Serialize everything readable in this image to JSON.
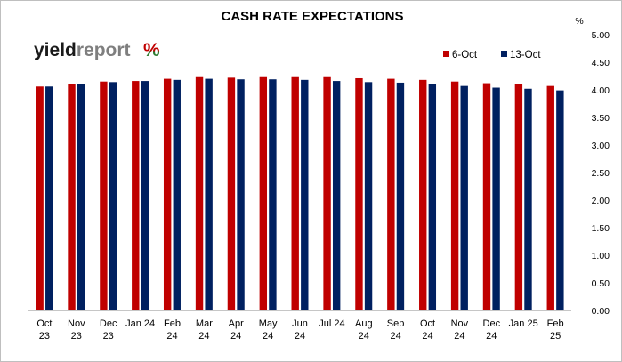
{
  "chart_data": {
    "type": "bar",
    "title": "CASH RATE EXPECTATIONS",
    "ylabel": "%",
    "ylim": [
      0,
      5
    ],
    "yticks": [
      "0.00",
      "0.50",
      "1.00",
      "1.50",
      "2.00",
      "2.50",
      "3.00",
      "3.50",
      "4.00",
      "4.50",
      "5.00"
    ],
    "categories": [
      [
        "Oct",
        "23"
      ],
      [
        "Nov",
        "23"
      ],
      [
        "Dec",
        "23"
      ],
      [
        "Jan 24"
      ],
      [
        "Feb",
        "24"
      ],
      [
        "Mar",
        "24"
      ],
      [
        "Apr",
        "24"
      ],
      [
        "May",
        "24"
      ],
      [
        "Jun",
        "24"
      ],
      [
        "Jul 24"
      ],
      [
        "Aug",
        "24"
      ],
      [
        "Sep",
        "24"
      ],
      [
        "Oct",
        "24"
      ],
      [
        "Nov",
        "24"
      ],
      [
        "Dec",
        "24"
      ],
      [
        "Jan 25"
      ],
      [
        "Feb",
        "25"
      ]
    ],
    "series": [
      {
        "name": "6-Oct",
        "color": "#c00000",
        "values": [
          4.06,
          4.11,
          4.15,
          4.16,
          4.2,
          4.23,
          4.22,
          4.23,
          4.23,
          4.23,
          4.21,
          4.2,
          4.18,
          4.15,
          4.12,
          4.1,
          4.07
        ]
      },
      {
        "name": "13-Oct",
        "color": "#002060",
        "values": [
          4.06,
          4.1,
          4.14,
          4.16,
          4.18,
          4.2,
          4.19,
          4.19,
          4.18,
          4.16,
          4.14,
          4.13,
          4.1,
          4.07,
          4.04,
          4.02,
          3.99
        ]
      }
    ],
    "legend_position": "top-right",
    "grid": false
  },
  "logo": {
    "part1": "yield",
    "part2": "report",
    "symbol": "%",
    "colors": {
      "part1": "#1a1a1a",
      "part2": "#7f7f7f",
      "symbol_top": "#c00000",
      "symbol_bottom": "#2e7d32"
    }
  }
}
